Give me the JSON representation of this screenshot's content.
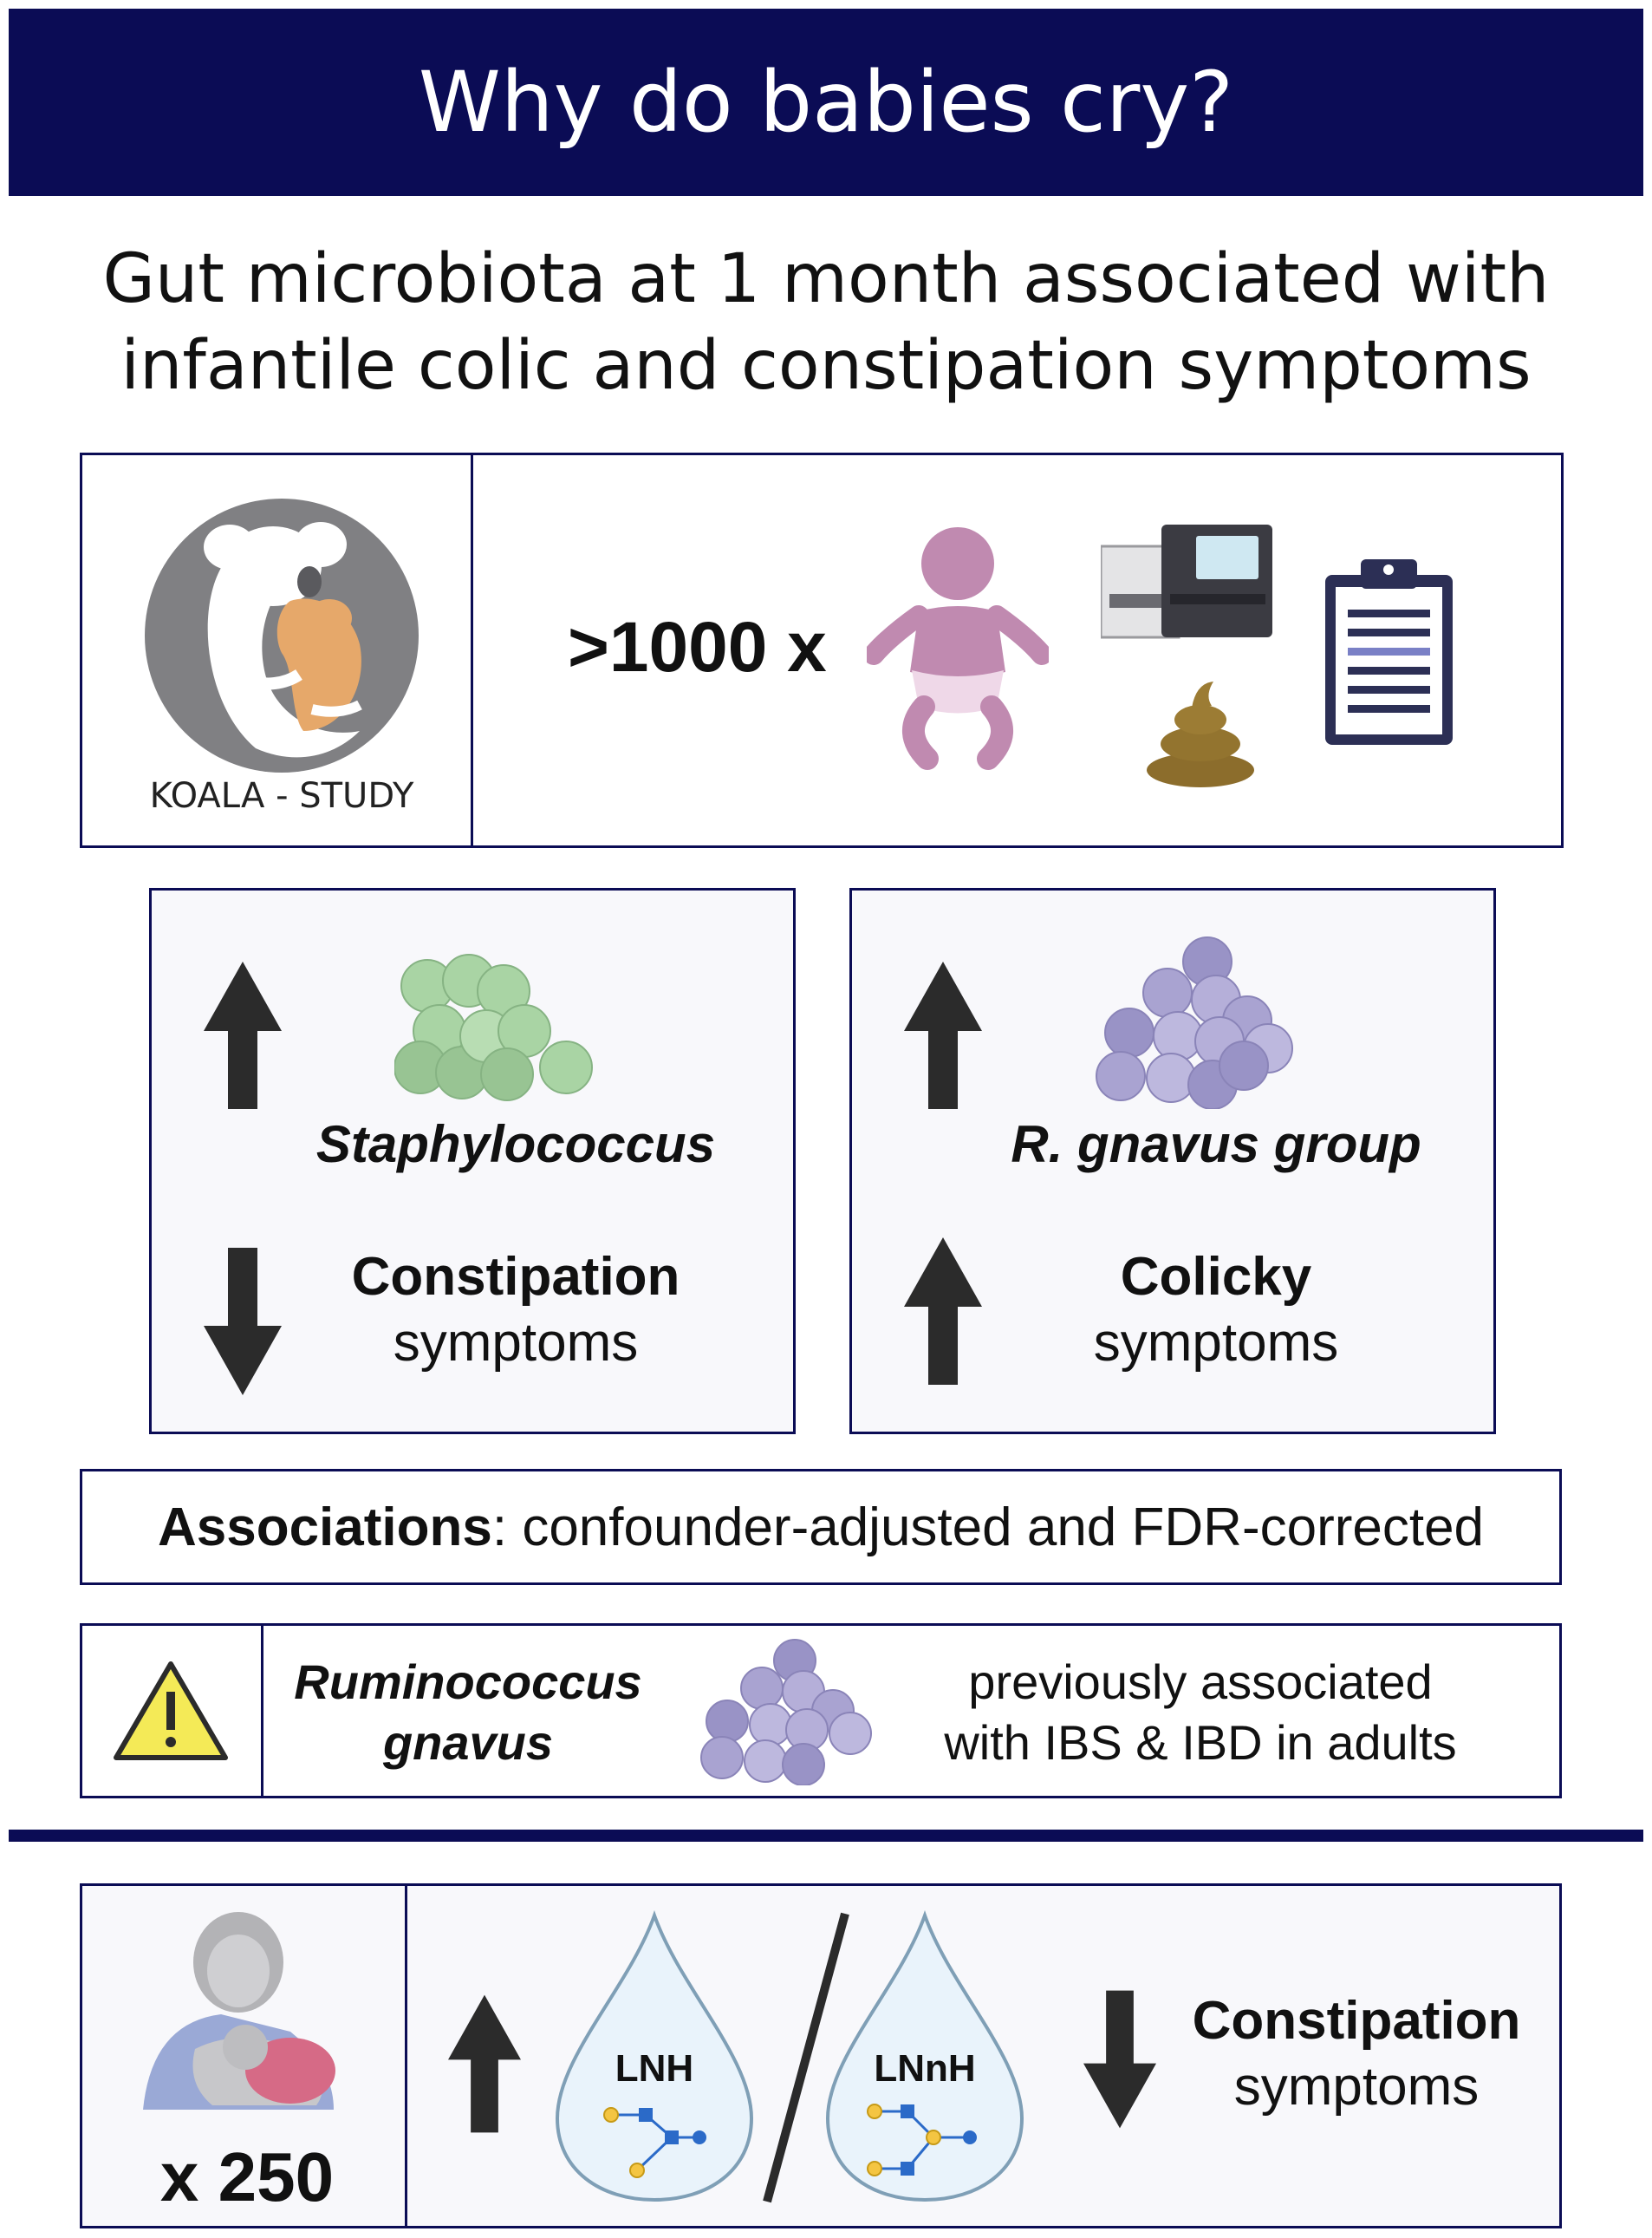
{
  "title": "Why do babies cry?",
  "subtitle_lines": [
    "Gut microbiota at 1 month associated with",
    "infantile colic and constipation symptoms"
  ],
  "study": {
    "logo_text": "KOALA - STUDY",
    "count": ">1000 x",
    "icons": [
      "koala-logo-icon",
      "baby-icon",
      "sequencer-icon",
      "stool-icon",
      "clipboard-icon"
    ]
  },
  "panel_left": {
    "direction_bacteria": "up",
    "bacteria": "Staphylococcus",
    "direction_symptom": "down",
    "symptom_title": "Constipation",
    "symptom_sub": "symptoms",
    "color": "#a9d4a4"
  },
  "panel_right": {
    "direction_bacteria": "up",
    "bacteria": "R. gnavus group",
    "direction_symptom": "up",
    "symptom_title": "Colicky",
    "symptom_sub": "symptoms",
    "color": "#a9a3d1"
  },
  "associations": {
    "bold": "Associations",
    "rest": ": confounder-adjusted and FDR-corrected"
  },
  "warning": {
    "name_line1": "Ruminococcus",
    "name_line2": "gnavus",
    "note_line1": "previously associated",
    "note_line2": "with IBS & IBD in adults"
  },
  "milk": {
    "count": "x 250",
    "drop1": "LNH",
    "drop2": "LNnH",
    "direction_hmo": "up",
    "direction_symptom": "down",
    "symptom_title": "Constipation",
    "symptom_sub": "symptoms"
  },
  "colors": {
    "navy": "#0b0c55",
    "baby": "#c08ab0",
    "stool": "#8c6d2c",
    "warning": "#f4ea57"
  }
}
